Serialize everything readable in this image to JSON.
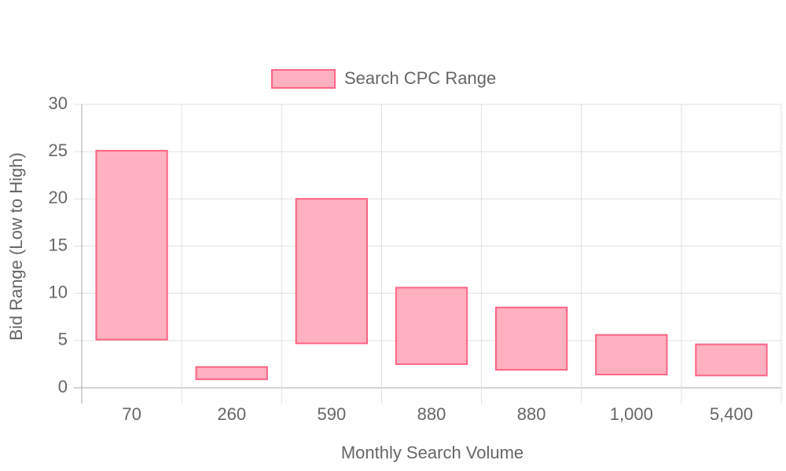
{
  "chart_data": {
    "type": "floating-bar",
    "x_label": "Monthly Search Volume",
    "y_label": "Bid Range (Low to High)",
    "categories": [
      "70",
      "260",
      "590",
      "880",
      "880",
      "1,000",
      "5,400"
    ],
    "series": [
      {
        "name": "Search CPC Range",
        "color": "#ff6384",
        "fill": "#ffb1c1",
        "values": [
          [
            5.1,
            25.1
          ],
          [
            0.9,
            2.2
          ],
          [
            4.7,
            20.0
          ],
          [
            2.5,
            10.6
          ],
          [
            1.9,
            8.5
          ],
          [
            1.4,
            5.6
          ],
          [
            1.3,
            4.6
          ]
        ]
      }
    ],
    "ylim": [
      0,
      30
    ],
    "yticks": [
      0,
      5,
      10,
      15,
      20,
      25,
      30
    ],
    "grid": true,
    "legend": "top"
  }
}
